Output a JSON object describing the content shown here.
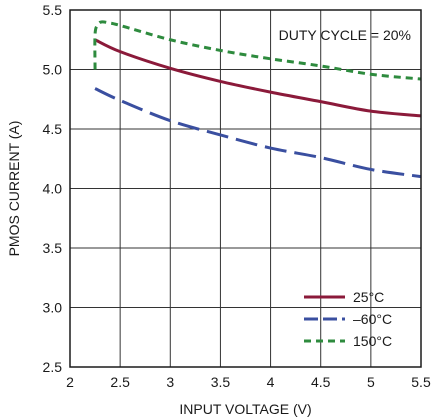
{
  "chart_data": {
    "type": "line",
    "title": "",
    "xlabel": "INPUT VOLTAGE (V)",
    "ylabel": "PMOS CURRENT (A)",
    "xlim": [
      2,
      5.5
    ],
    "ylim": [
      2.5,
      5.5
    ],
    "x_ticks": [
      2,
      2.5,
      3,
      3.5,
      4,
      4.5,
      5,
      5.5
    ],
    "x_tick_labels": [
      "2",
      "2.5",
      "3",
      "3.5",
      "4",
      "4.5",
      "5",
      "5.5"
    ],
    "y_ticks": [
      2.5,
      3.0,
      3.5,
      4.0,
      4.5,
      5.0,
      5.5
    ],
    "y_tick_labels": [
      "2.5",
      "3.0",
      "3.5",
      "4.0",
      "4.5",
      "5.0",
      "5.5"
    ],
    "grid": true,
    "legend_position": "bottom-right",
    "annotation": "DUTY CYCLE = 20%",
    "series": [
      {
        "name": "25°C",
        "color": "#8b1a3a",
        "dash": "solid",
        "x": [
          2.25,
          2.5,
          3.0,
          3.5,
          4.0,
          4.5,
          5.0,
          5.5
        ],
        "y": [
          5.25,
          5.15,
          5.01,
          4.9,
          4.81,
          4.73,
          4.65,
          4.61
        ]
      },
      {
        "name": "–60°C",
        "color": "#3a4fa0",
        "dash": "long-dash",
        "x": [
          2.25,
          2.5,
          3.0,
          3.5,
          4.0,
          4.5,
          5.0,
          5.5
        ],
        "y": [
          4.84,
          4.74,
          4.57,
          4.45,
          4.34,
          4.26,
          4.16,
          4.1
        ]
      },
      {
        "name": "150°C",
        "color": "#2e8b3e",
        "dash": "short-dash",
        "x": [
          2.25,
          2.25,
          2.28,
          2.32,
          2.4,
          2.5,
          3.0,
          3.5,
          4.0,
          4.5,
          5.0,
          5.5
        ],
        "y": [
          5.0,
          5.3,
          5.38,
          5.4,
          5.39,
          5.37,
          5.25,
          5.16,
          5.09,
          5.03,
          4.96,
          4.92
        ]
      }
    ]
  }
}
